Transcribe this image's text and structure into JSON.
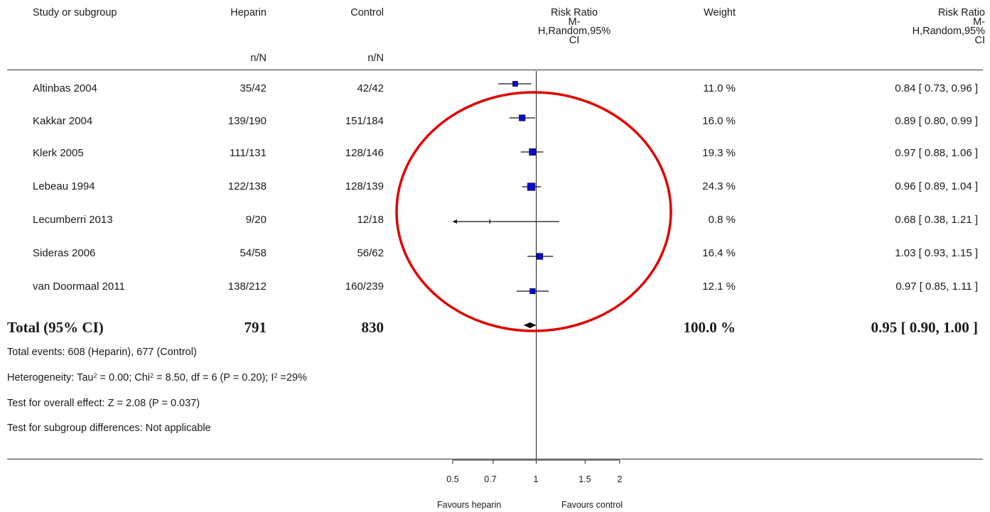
{
  "header": {
    "study": "Study or subgroup",
    "heparin": "Heparin",
    "control": "Control",
    "heparin_sub": "n/N",
    "control_sub": "n/N",
    "rr_title": "Risk Ratio",
    "rr_line2": "M-",
    "rr_line3": "H,Random,95%",
    "rr_line4": "CI",
    "weight": "Weight",
    "rr2_title": "Risk Ratio",
    "rr2_line2": "M-",
    "rr2_line3": "H,Random,95%",
    "rr2_line4": "CI"
  },
  "rows": [
    {
      "study": "Altinbas 2004",
      "heparin": "35/42",
      "control": "42/42",
      "weight": "11.0 %",
      "ci_text": "0.84 [ 0.73, 0.96 ]"
    },
    {
      "study": "Kakkar 2004",
      "heparin": "139/190",
      "control": "151/184",
      "weight": "16.0 %",
      "ci_text": "0.89 [ 0.80, 0.99 ]"
    },
    {
      "study": "Klerk 2005",
      "heparin": "111/131",
      "control": "128/146",
      "weight": "19.3 %",
      "ci_text": "0.97 [ 0.88, 1.06 ]"
    },
    {
      "study": "Lebeau 1994",
      "heparin": "122/138",
      "control": "128/139",
      "weight": "24.3 %",
      "ci_text": "0.96 [ 0.89, 1.04 ]"
    },
    {
      "study": "Lecumberri 2013",
      "heparin": "9/20",
      "control": "12/18",
      "weight": "0.8 %",
      "ci_text": "0.68 [ 0.38, 1.21 ]"
    },
    {
      "study": "Sideras 2006",
      "heparin": "54/58",
      "control": "56/62",
      "weight": "16.4 %",
      "ci_text": "1.03 [ 0.93, 1.15 ]"
    },
    {
      "study": "van Doormaal 2011",
      "heparin": "138/212",
      "control": "160/239",
      "weight": "12.1 %",
      "ci_text": "0.97 [ 0.85, 1.11 ]"
    }
  ],
  "total": {
    "label": "Total (95% CI)",
    "heparin": "791",
    "control": "830",
    "weight": "100.0 %",
    "ci_text": "0.95 [ 0.90, 1.00 ]"
  },
  "footnotes": {
    "events": "Total events: 608 (Heparin), 677 (Control)",
    "het_a": "Heterogeneity: Tau",
    "het_b": " = 0.00; Chi",
    "het_c": " = 8.50, df = 6 (P = 0.20); I",
    "het_d": " =29%",
    "sup2": "2",
    "overall": "Test for overall effect: Z = 2.08 (P = 0.037)",
    "subgroup": "Test for subgroup differences: Not applicable"
  },
  "axis": {
    "ticks": [
      "0.5",
      "0.7",
      "1",
      "1.5",
      "2"
    ],
    "favours_left": "Favours heparin",
    "favours_right": "Favours control"
  },
  "chart_data": {
    "type": "scatter",
    "subtype": "forest plot",
    "scale": "log",
    "xlim": [
      0.5,
      2
    ],
    "x_ticks": [
      0.5,
      0.7,
      1,
      1.5,
      2
    ],
    "reference_line": 1,
    "studies": [
      {
        "name": "Altinbas 2004",
        "rr": 0.84,
        "lo": 0.73,
        "hi": 0.96,
        "weight": 11.0
      },
      {
        "name": "Kakkar 2004",
        "rr": 0.89,
        "lo": 0.8,
        "hi": 0.99,
        "weight": 16.0
      },
      {
        "name": "Klerk 2005",
        "rr": 0.97,
        "lo": 0.88,
        "hi": 1.06,
        "weight": 19.3
      },
      {
        "name": "Lebeau 1994",
        "rr": 0.96,
        "lo": 0.89,
        "hi": 1.04,
        "weight": 24.3
      },
      {
        "name": "Lecumberri 2013",
        "rr": 0.68,
        "lo": 0.38,
        "hi": 1.21,
        "weight": 0.8
      },
      {
        "name": "Sideras 2006",
        "rr": 1.03,
        "lo": 0.93,
        "hi": 1.15,
        "weight": 16.4
      },
      {
        "name": "van Doormaal 2011",
        "rr": 0.97,
        "lo": 0.85,
        "hi": 1.11,
        "weight": 12.1
      }
    ],
    "pooled": {
      "rr": 0.95,
      "lo": 0.9,
      "hi": 1.0
    },
    "marker_color": "#0a0acd",
    "annotation_color": "#e00000"
  }
}
